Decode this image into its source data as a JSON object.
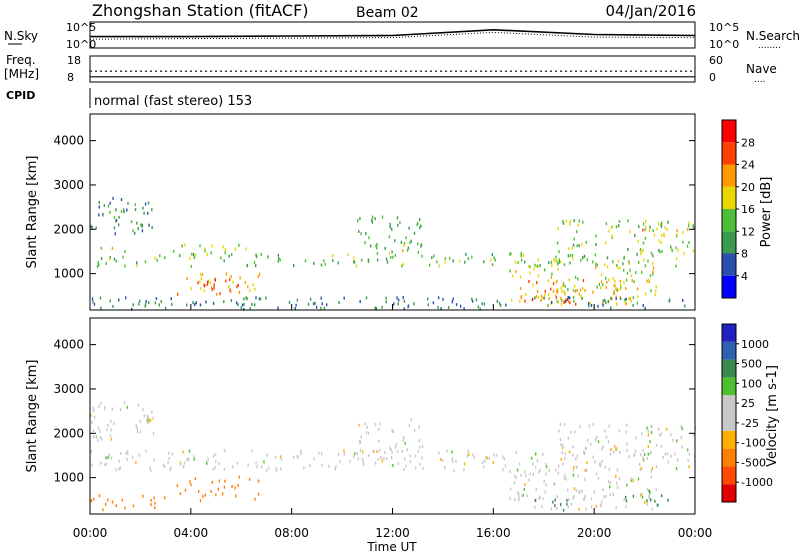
{
  "header": {
    "station": "Zhongshan Station (fitACF)",
    "beam": "Beam 02",
    "date": "04/Jan/2016"
  },
  "noise_panel": {
    "left_label": "N.Sky",
    "left_ticks": [
      "10^5",
      "10^0"
    ],
    "right_ticks": [
      "10^5",
      "10^0"
    ],
    "right_label": "N.Search",
    "search_legend": "........"
  },
  "freq_panel": {
    "left_label_1": "Freq.",
    "left_label_2": "[MHz]",
    "left_ticks": [
      "18",
      "8"
    ],
    "right_ticks": [
      "60",
      "0"
    ],
    "right_label": "Nave",
    "nave_legend": "...."
  },
  "cpid": {
    "label": "CPID",
    "text": "normal (fast stereo) 153"
  },
  "x_axis": {
    "ticks": [
      "00:00",
      "04:00",
      "08:00",
      "12:00",
      "16:00",
      "20:00",
      "00:00"
    ],
    "label": "Time UT"
  },
  "colors": {
    "power_scale": [
      "#0000ff",
      "#2a4fb0",
      "#3b9a50",
      "#4fbf3a",
      "#e8d800",
      "#ff9a00",
      "#ff4000",
      "#ff0000"
    ],
    "velocity_scale": [
      "#e00000",
      "#ff4a00",
      "#ff8000",
      "#ffb000",
      "#c8c8c8",
      "#c8c8c8",
      "#50c030",
      "#3a8a50",
      "#3060b0",
      "#2020c0"
    ]
  },
  "chart_data": [
    {
      "type": "line",
      "title": "N.Sky / N.Search",
      "x": [
        "00:00",
        "04:00",
        "08:00",
        "12:00",
        "16:00",
        "20:00",
        "00:00"
      ],
      "ylim_log10": [
        0,
        5
      ],
      "series": [
        {
          "name": "N.Sky",
          "values": [
            2.2,
            2.2,
            2.3,
            2.4,
            3.5,
            2.6,
            2.4
          ]
        },
        {
          "name": "N.Search",
          "values": [
            1.7,
            1.8,
            1.9,
            2.0,
            3.0,
            2.1,
            2.0
          ]
        }
      ]
    },
    {
      "type": "line",
      "title": "Freq. / Nave",
      "x": [
        "00:00",
        "04:00",
        "08:00",
        "12:00",
        "16:00",
        "20:00",
        "00:00"
      ],
      "freq_ylim": [
        8,
        18
      ],
      "nave_ylim": [
        0,
        60
      ],
      "series": [
        {
          "name": "Freq.",
          "values": [
            10.0,
            10.0,
            10.0,
            10.0,
            10.0,
            10.0,
            10.0
          ]
        },
        {
          "name": "Nave",
          "values": [
            25,
            25,
            25,
            25,
            25,
            25,
            25
          ]
        }
      ]
    },
    {
      "type": "heatmap",
      "xlabel": "",
      "ylabel": "Slant Range [km]",
      "yticks": [
        "1000",
        "2000",
        "3000",
        "4000"
      ],
      "ylim": [
        180,
        4600
      ],
      "xlim_hours": [
        0,
        24
      ],
      "colorbar": {
        "label": "Power [dB]",
        "ticks": [
          "4",
          "8",
          "12",
          "16",
          "20",
          "24",
          "28"
        ]
      },
      "regions": [
        {
          "t0": 0.0,
          "t1": 2.5,
          "r0": 1800,
          "r1": 2700,
          "value": 10
        },
        {
          "t0": 0.0,
          "t1": 23.8,
          "r0": 1150,
          "r1": 1450,
          "value": 13
        },
        {
          "t0": 0.0,
          "t1": 2.0,
          "r0": 1450,
          "r1": 1600,
          "value": 18
        },
        {
          "t0": 3.4,
          "t1": 6.8,
          "r0": 500,
          "r1": 1000,
          "value": 21
        },
        {
          "t0": 4.5,
          "t1": 6.6,
          "r0": 550,
          "r1": 850,
          "value": 26
        },
        {
          "t0": 3.0,
          "t1": 6.5,
          "r0": 1400,
          "r1": 1650,
          "value": 16
        },
        {
          "t0": 10.5,
          "t1": 13.2,
          "r0": 1400,
          "r1": 2300,
          "value": 12
        },
        {
          "t0": 11.3,
          "t1": 12.6,
          "r0": 1450,
          "r1": 1700,
          "value": 17
        },
        {
          "t0": 16.6,
          "t1": 22.5,
          "r0": 250,
          "r1": 1300,
          "value": 17
        },
        {
          "t0": 17.0,
          "t1": 21.5,
          "r0": 300,
          "r1": 900,
          "value": 22
        },
        {
          "t0": 17.5,
          "t1": 19.5,
          "r0": 250,
          "r1": 500,
          "value": 26
        },
        {
          "t0": 18.5,
          "t1": 24.0,
          "r0": 1450,
          "r1": 2200,
          "value": 15
        },
        {
          "t0": 21.5,
          "t1": 24.0,
          "r0": 1800,
          "r1": 2000,
          "value": 21
        },
        {
          "t0": 0.0,
          "t1": 24.0,
          "r0": 180,
          "r1": 450,
          "value": 8
        }
      ]
    },
    {
      "type": "heatmap",
      "xlabel": "Time UT",
      "ylabel": "Slant Range [km]",
      "yticks": [
        "1000",
        "2000",
        "3000",
        "4000"
      ],
      "ylim": [
        180,
        4600
      ],
      "xlim_hours": [
        0,
        24
      ],
      "colorbar": {
        "label": "Velocity [m s-1]",
        "ticks": [
          "-1000",
          "-500",
          "-100",
          "-25",
          "25",
          "100",
          "500",
          "1000"
        ]
      },
      "regions": [
        {
          "t0": 0.0,
          "t1": 2.5,
          "r0": 1800,
          "r1": 2700,
          "value": 0
        },
        {
          "t0": 0.0,
          "t1": 23.8,
          "r0": 1150,
          "r1": 1600,
          "value": 0
        },
        {
          "t0": 3.4,
          "t1": 6.8,
          "r0": 450,
          "r1": 1000,
          "value": -200
        },
        {
          "t0": 10.5,
          "t1": 13.2,
          "r0": 1400,
          "r1": 2300,
          "value": 0
        },
        {
          "t0": 16.6,
          "t1": 22.5,
          "r0": 250,
          "r1": 1300,
          "value": 0
        },
        {
          "t0": 17.5,
          "t1": 19.0,
          "r0": 250,
          "r1": 500,
          "value": 150
        },
        {
          "t0": 21.0,
          "t1": 23.0,
          "r0": 350,
          "r1": 700,
          "value": 150
        },
        {
          "t0": 18.5,
          "t1": 24.0,
          "r0": 1450,
          "r1": 2200,
          "value": 0
        },
        {
          "t0": 0.0,
          "t1": 3.0,
          "r0": 250,
          "r1": 600,
          "value": -150
        }
      ]
    }
  ]
}
